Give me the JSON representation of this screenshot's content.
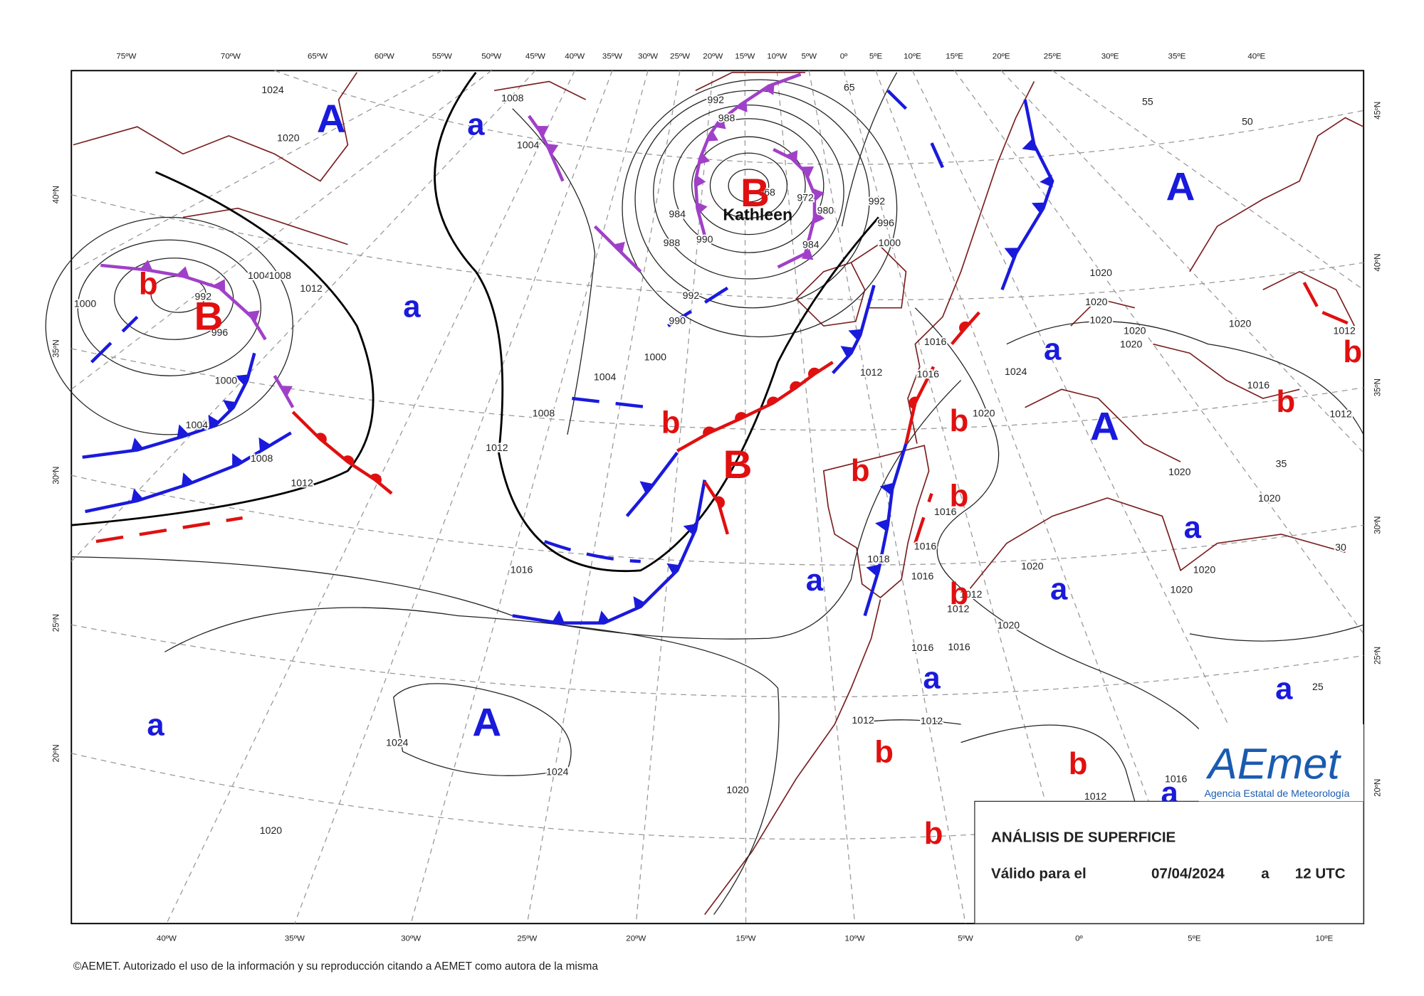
{
  "top_longitudes": [
    "75ºW",
    "70ºW",
    "65ºW",
    "60ºW",
    "55ºW",
    "50ºW",
    "45ºW",
    "40ºW",
    "35ºW",
    "30ºW",
    "25ºW",
    "20ºW",
    "15ºW",
    "10ºW",
    "5ºW",
    "0º",
    "5ºE",
    "10ºE",
    "15ºE",
    "20ºE",
    "25ºE",
    "30ºE",
    "35ºE",
    "40ºE"
  ],
  "bottom_longitudes": [
    "40ºW",
    "35ºW",
    "30ºW",
    "25ºW",
    "20ºW",
    "15ºW",
    "10ºW",
    "5ºW",
    "0º",
    "5ºE",
    "10ºE"
  ],
  "left_latitudes": [
    "40ºN",
    "35ºN",
    "30ºN",
    "25ºN",
    "20ºN"
  ],
  "right_latitudes": [
    "45ºN",
    "40ºN",
    "35ºN",
    "30ºN",
    "25ºN",
    "20ºN"
  ],
  "pressure_centers": [
    "A",
    "a",
    "a",
    "B",
    "b",
    "B",
    "A",
    "a",
    "A",
    "b",
    "b",
    "B",
    "b",
    "b",
    "a",
    "a",
    "a",
    "b",
    "a",
    "a",
    "A",
    "a",
    "b",
    "b",
    "a",
    "b",
    "b",
    "b"
  ],
  "storm_name": "Kathleen",
  "isobar_labels": [
    1024,
    1020,
    1008,
    1004,
    992,
    988,
    968,
    972,
    980,
    984,
    988,
    990,
    984,
    992,
    990,
    992,
    996,
    1000,
    1004,
    1008,
    1012,
    1000,
    992,
    996,
    1000,
    1004,
    1008,
    1012,
    1004,
    1000,
    1008,
    1012,
    1016,
    1024,
    1024,
    1020,
    1020,
    1012,
    1016,
    1016,
    1024,
    1020,
    1020,
    1020,
    1020,
    1020,
    1020,
    1020,
    1012,
    1016,
    1012,
    1020,
    1020,
    1020,
    1020,
    1020,
    1020,
    1016,
    1016,
    1016,
    1016,
    1016,
    1012,
    1012,
    1012,
    1012,
    1012,
    1016,
    1018,
    65,
    55,
    50,
    35,
    30,
    25
  ],
  "info_box": {
    "title": "ANÁLISIS DE SUPERFICIE",
    "valid_label": "Válido para el",
    "date": "07/04/2024",
    "separator": "a",
    "time": "12 UTC"
  },
  "logo": {
    "name": "AEmet",
    "subtitle": "Agencia Estatal de Meteorología"
  },
  "copyright": "©AEMET. Autorizado el uso de la información y su reproducción citando a AEMET como autora de la misma"
}
